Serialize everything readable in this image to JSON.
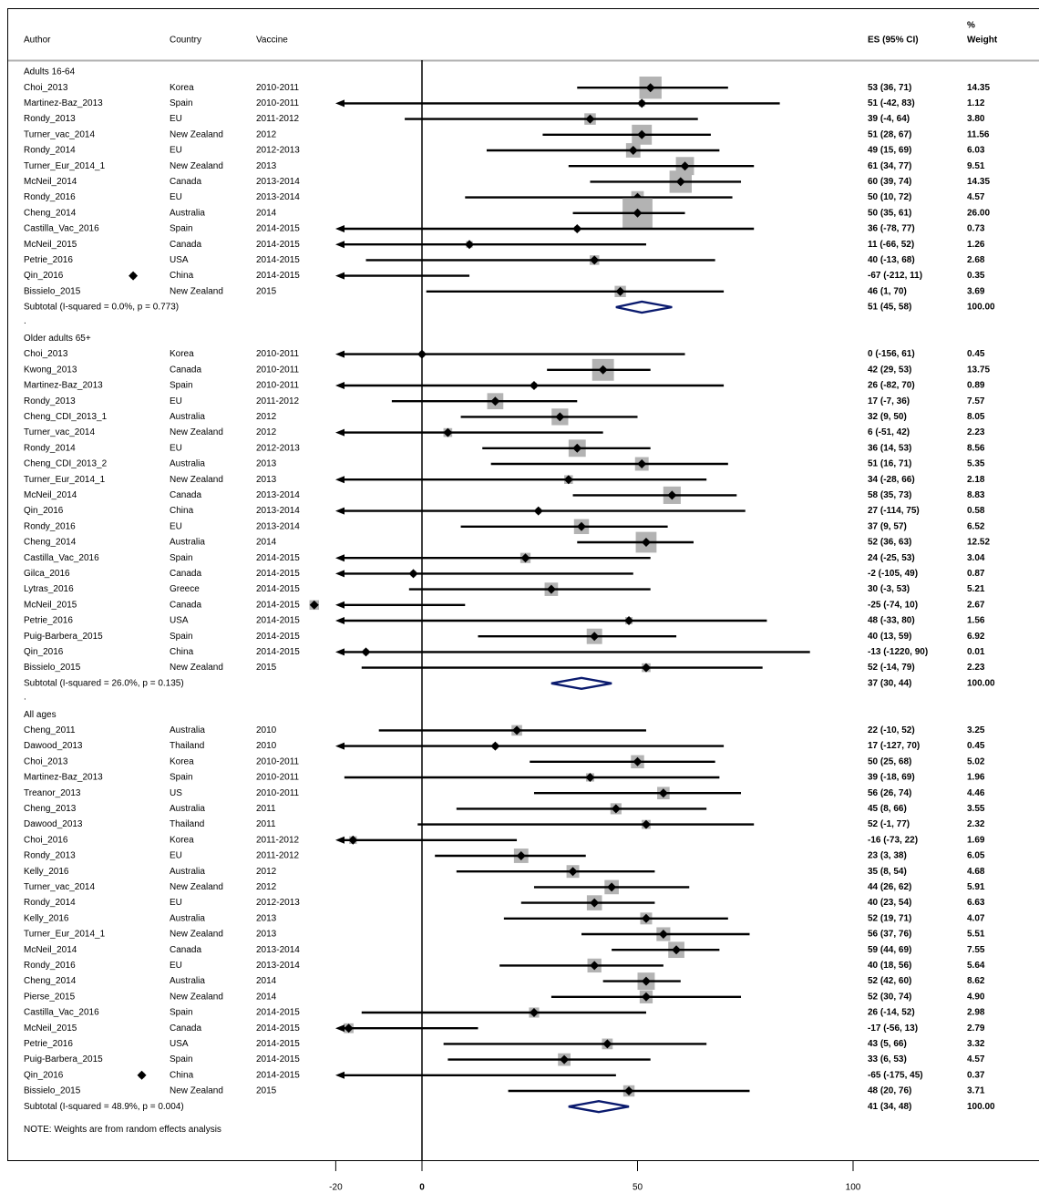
{
  "chart_data": {
    "type": "forest",
    "headers": {
      "author": "Author",
      "country": "Country",
      "vaccine": "Vaccine",
      "es": "ES (95% CI)",
      "weight_top": "%",
      "weight": "Weight"
    },
    "xaxis": {
      "ticks": [
        -20,
        0,
        50,
        100
      ],
      "range": [
        -20,
        100
      ],
      "null_line": 0
    },
    "note": "NOTE: Weights are from random effects analysis",
    "groups": [
      {
        "label": "Adults 16-64",
        "studies": [
          {
            "author": "Choi_2013",
            "country": "Korea",
            "vaccine": "2010-2011",
            "es": 53,
            "lo": 36,
            "hi": 71,
            "es_text": "53 (36, 71)",
            "weight": "14.35"
          },
          {
            "author": "Martinez-Baz_2013",
            "country": "Spain",
            "vaccine": "2010-2011",
            "es": 51,
            "lo": -42,
            "hi": 83,
            "es_text": "51 (-42, 83)",
            "weight": "1.12"
          },
          {
            "author": "Rondy_2013",
            "country": "EU",
            "vaccine": "2011-2012",
            "es": 39,
            "lo": -4,
            "hi": 64,
            "es_text": "39 (-4, 64)",
            "weight": "3.80"
          },
          {
            "author": "Turner_vac_2014",
            "country": "New Zealand",
            "vaccine": "2012",
            "es": 51,
            "lo": 28,
            "hi": 67,
            "es_text": "51 (28, 67)",
            "weight": "11.56"
          },
          {
            "author": "Rondy_2014",
            "country": "EU",
            "vaccine": "2012-2013",
            "es": 49,
            "lo": 15,
            "hi": 69,
            "es_text": "49 (15, 69)",
            "weight": "6.03"
          },
          {
            "author": "Turner_Eur_2014_1",
            "country": "New Zealand",
            "vaccine": "2013",
            "es": 61,
            "lo": 34,
            "hi": 77,
            "es_text": "61 (34, 77)",
            "weight": "9.51"
          },
          {
            "author": "McNeil_2014",
            "country": "Canada",
            "vaccine": "2013-2014",
            "es": 60,
            "lo": 39,
            "hi": 74,
            "es_text": "60 (39, 74)",
            "weight": "14.35"
          },
          {
            "author": "Rondy_2016",
            "country": "EU",
            "vaccine": "2013-2014",
            "es": 50,
            "lo": 10,
            "hi": 72,
            "es_text": "50 (10, 72)",
            "weight": "4.57"
          },
          {
            "author": "Cheng_2014",
            "country": "Australia",
            "vaccine": "2014",
            "es": 50,
            "lo": 35,
            "hi": 61,
            "es_text": "50 (35, 61)",
            "weight": "26.00"
          },
          {
            "author": "Castilla_Vac_2016",
            "country": "Spain",
            "vaccine": "2014-2015",
            "es": 36,
            "lo": -78,
            "hi": 77,
            "es_text": "36 (-78, 77)",
            "weight": "0.73"
          },
          {
            "author": "McNeil_2015",
            "country": "Canada",
            "vaccine": "2014-2015",
            "es": 11,
            "lo": -66,
            "hi": 52,
            "es_text": "11 (-66, 52)",
            "weight": "1.26"
          },
          {
            "author": "Petrie_2016",
            "country": "USA",
            "vaccine": "2014-2015",
            "es": 40,
            "lo": -13,
            "hi": 68,
            "es_text": "40 (-13, 68)",
            "weight": "2.68"
          },
          {
            "author": "Qin_2016",
            "country": "China",
            "vaccine": "2014-2015",
            "es": -67,
            "lo": -212,
            "hi": 11,
            "es_text": "-67 (-212, 11)",
            "weight": "0.35"
          },
          {
            "author": "Bissielo_2015",
            "country": "New Zealand",
            "vaccine": "2015",
            "es": 46,
            "lo": 1,
            "hi": 70,
            "es_text": "46 (1, 70)",
            "weight": "3.69"
          }
        ],
        "subtotal": {
          "label": "Subtotal  (I-squared = 0.0%, p = 0.773)",
          "es": 51,
          "lo": 45,
          "hi": 58,
          "es_text": "51 (45, 58)",
          "weight": "100.00"
        }
      },
      {
        "label": "Older adults 65+",
        "studies": [
          {
            "author": "Choi_2013",
            "country": "Korea",
            "vaccine": "2010-2011",
            "es": 0,
            "lo": -156,
            "hi": 61,
            "es_text": "0 (-156, 61)",
            "weight": "0.45"
          },
          {
            "author": "Kwong_2013",
            "country": "Canada",
            "vaccine": "2010-2011",
            "es": 42,
            "lo": 29,
            "hi": 53,
            "es_text": "42 (29, 53)",
            "weight": "13.75"
          },
          {
            "author": "Martinez-Baz_2013",
            "country": "Spain",
            "vaccine": "2010-2011",
            "es": 26,
            "lo": -82,
            "hi": 70,
            "es_text": "26 (-82, 70)",
            "weight": "0.89"
          },
          {
            "author": "Rondy_2013",
            "country": "EU",
            "vaccine": "2011-2012",
            "es": 17,
            "lo": -7,
            "hi": 36,
            "es_text": "17 (-7, 36)",
            "weight": "7.57"
          },
          {
            "author": "Cheng_CDI_2013_1",
            "country": "Australia",
            "vaccine": "2012",
            "es": 32,
            "lo": 9,
            "hi": 50,
            "es_text": "32 (9, 50)",
            "weight": "8.05"
          },
          {
            "author": "Turner_vac_2014",
            "country": "New Zealand",
            "vaccine": "2012",
            "es": 6,
            "lo": -51,
            "hi": 42,
            "es_text": "6 (-51, 42)",
            "weight": "2.23"
          },
          {
            "author": "Rondy_2014",
            "country": "EU",
            "vaccine": "2012-2013",
            "es": 36,
            "lo": 14,
            "hi": 53,
            "es_text": "36 (14, 53)",
            "weight": "8.56"
          },
          {
            "author": "Cheng_CDI_2013_2",
            "country": "Australia",
            "vaccine": "2013",
            "es": 51,
            "lo": 16,
            "hi": 71,
            "es_text": "51 (16, 71)",
            "weight": "5.35"
          },
          {
            "author": "Turner_Eur_2014_1",
            "country": "New Zealand",
            "vaccine": "2013",
            "es": 34,
            "lo": -28,
            "hi": 66,
            "es_text": "34 (-28, 66)",
            "weight": "2.18"
          },
          {
            "author": "McNeil_2014",
            "country": "Canada",
            "vaccine": "2013-2014",
            "es": 58,
            "lo": 35,
            "hi": 73,
            "es_text": "58 (35, 73)",
            "weight": "8.83"
          },
          {
            "author": "Qin_2016",
            "country": "China",
            "vaccine": "2013-2014",
            "es": 27,
            "lo": -114,
            "hi": 75,
            "es_text": "27 (-114, 75)",
            "weight": "0.58"
          },
          {
            "author": "Rondy_2016",
            "country": "EU",
            "vaccine": "2013-2014",
            "es": 37,
            "lo": 9,
            "hi": 57,
            "es_text": "37 (9, 57)",
            "weight": "6.52"
          },
          {
            "author": "Cheng_2014",
            "country": "Australia",
            "vaccine": "2014",
            "es": 52,
            "lo": 36,
            "hi": 63,
            "es_text": "52 (36, 63)",
            "weight": "12.52"
          },
          {
            "author": "Castilla_Vac_2016",
            "country": "Spain",
            "vaccine": "2014-2015",
            "es": 24,
            "lo": -25,
            "hi": 53,
            "es_text": "24 (-25, 53)",
            "weight": "3.04"
          },
          {
            "author": "Gilca_2016",
            "country": "Canada",
            "vaccine": "2014-2015",
            "es": -2,
            "lo": -105,
            "hi": 49,
            "es_text": "-2 (-105, 49)",
            "weight": "0.87"
          },
          {
            "author": "Lytras_2016",
            "country": "Greece",
            "vaccine": "2014-2015",
            "es": 30,
            "lo": -3,
            "hi": 53,
            "es_text": "30 (-3, 53)",
            "weight": "5.21"
          },
          {
            "author": "McNeil_2015",
            "country": "Canada",
            "vaccine": "2014-2015",
            "es": -25,
            "lo": -74,
            "hi": 10,
            "es_text": "-25 (-74, 10)",
            "weight": "2.67"
          },
          {
            "author": "Petrie_2016",
            "country": "USA",
            "vaccine": "2014-2015",
            "es": 48,
            "lo": -33,
            "hi": 80,
            "es_text": "48 (-33, 80)",
            "weight": "1.56"
          },
          {
            "author": "Puig-Barbera_2015",
            "country": "Spain",
            "vaccine": "2014-2015",
            "es": 40,
            "lo": 13,
            "hi": 59,
            "es_text": "40 (13, 59)",
            "weight": "6.92"
          },
          {
            "author": "Qin_2016",
            "country": "China",
            "vaccine": "2014-2015",
            "es": -13,
            "lo": -1220,
            "hi": 90,
            "es_text": "-13 (-1220, 90)",
            "weight": "0.01"
          },
          {
            "author": "Bissielo_2015",
            "country": "New Zealand",
            "vaccine": "2015",
            "es": 52,
            "lo": -14,
            "hi": 79,
            "es_text": "52 (-14, 79)",
            "weight": "2.23"
          }
        ],
        "subtotal": {
          "label": "Subtotal  (I-squared = 26.0%, p = 0.135)",
          "es": 37,
          "lo": 30,
          "hi": 44,
          "es_text": "37 (30, 44)",
          "weight": "100.00"
        }
      },
      {
        "label": "All ages",
        "studies": [
          {
            "author": "Cheng_2011",
            "country": "Australia",
            "vaccine": "2010",
            "es": 22,
            "lo": -10,
            "hi": 52,
            "es_text": "22 (-10, 52)",
            "weight": "3.25"
          },
          {
            "author": "Dawood_2013",
            "country": "Thailand",
            "vaccine": "2010",
            "es": 17,
            "lo": -127,
            "hi": 70,
            "es_text": "17 (-127, 70)",
            "weight": "0.45"
          },
          {
            "author": "Choi_2013",
            "country": "Korea",
            "vaccine": "2010-2011",
            "es": 50,
            "lo": 25,
            "hi": 68,
            "es_text": "50 (25, 68)",
            "weight": "5.02"
          },
          {
            "author": "Martinez-Baz_2013",
            "country": "Spain",
            "vaccine": "2010-2011",
            "es": 39,
            "lo": -18,
            "hi": 69,
            "es_text": "39 (-18, 69)",
            "weight": "1.96"
          },
          {
            "author": "Treanor_2013",
            "country": "US",
            "vaccine": "2010-2011",
            "es": 56,
            "lo": 26,
            "hi": 74,
            "es_text": "56 (26, 74)",
            "weight": "4.46"
          },
          {
            "author": "Cheng_2013",
            "country": "Australia",
            "vaccine": "2011",
            "es": 45,
            "lo": 8,
            "hi": 66,
            "es_text": "45 (8, 66)",
            "weight": "3.55"
          },
          {
            "author": "Dawood_2013",
            "country": "Thailand",
            "vaccine": "2011",
            "es": 52,
            "lo": -1,
            "hi": 77,
            "es_text": "52 (-1, 77)",
            "weight": "2.32"
          },
          {
            "author": "Choi_2016",
            "country": "Korea",
            "vaccine": "2011-2012",
            "es": -16,
            "lo": -73,
            "hi": 22,
            "es_text": "-16 (-73, 22)",
            "weight": "1.69"
          },
          {
            "author": "Rondy_2013",
            "country": "EU",
            "vaccine": "2011-2012",
            "es": 23,
            "lo": 3,
            "hi": 38,
            "es_text": "23 (3, 38)",
            "weight": "6.05"
          },
          {
            "author": "Kelly_2016",
            "country": "Australia",
            "vaccine": "2012",
            "es": 35,
            "lo": 8,
            "hi": 54,
            "es_text": "35 (8, 54)",
            "weight": "4.68"
          },
          {
            "author": "Turner_vac_2014",
            "country": "New Zealand",
            "vaccine": "2012",
            "es": 44,
            "lo": 26,
            "hi": 62,
            "es_text": "44 (26, 62)",
            "weight": "5.91"
          },
          {
            "author": "Rondy_2014",
            "country": "EU",
            "vaccine": "2012-2013",
            "es": 40,
            "lo": 23,
            "hi": 54,
            "es_text": "40 (23, 54)",
            "weight": "6.63"
          },
          {
            "author": "Kelly_2016",
            "country": "Australia",
            "vaccine": "2013",
            "es": 52,
            "lo": 19,
            "hi": 71,
            "es_text": "52 (19, 71)",
            "weight": "4.07"
          },
          {
            "author": "Turner_Eur_2014_1",
            "country": "New Zealand",
            "vaccine": "2013",
            "es": 56,
            "lo": 37,
            "hi": 76,
            "es_text": "56 (37, 76)",
            "weight": "5.51"
          },
          {
            "author": "McNeil_2014",
            "country": "Canada",
            "vaccine": "2013-2014",
            "es": 59,
            "lo": 44,
            "hi": 69,
            "es_text": "59 (44, 69)",
            "weight": "7.55"
          },
          {
            "author": "Rondy_2016",
            "country": "EU",
            "vaccine": "2013-2014",
            "es": 40,
            "lo": 18,
            "hi": 56,
            "es_text": "40 (18, 56)",
            "weight": "5.64"
          },
          {
            "author": "Cheng_2014",
            "country": "Australia",
            "vaccine": "2014",
            "es": 52,
            "lo": 42,
            "hi": 60,
            "es_text": "52 (42, 60)",
            "weight": "8.62"
          },
          {
            "author": "Pierse_2015",
            "country": "New Zealand",
            "vaccine": "2014",
            "es": 52,
            "lo": 30,
            "hi": 74,
            "es_text": "52 (30, 74)",
            "weight": "4.90"
          },
          {
            "author": "Castilla_Vac_2016",
            "country": "Spain",
            "vaccine": "2014-2015",
            "es": 26,
            "lo": -14,
            "hi": 52,
            "es_text": "26 (-14, 52)",
            "weight": "2.98"
          },
          {
            "author": "McNeil_2015",
            "country": "Canada",
            "vaccine": "2014-2015",
            "es": -17,
            "lo": -56,
            "hi": 13,
            "es_text": "-17 (-56, 13)",
            "weight": "2.79"
          },
          {
            "author": "Petrie_2016",
            "country": "USA",
            "vaccine": "2014-2015",
            "es": 43,
            "lo": 5,
            "hi": 66,
            "es_text": "43 (5, 66)",
            "weight": "3.32"
          },
          {
            "author": "Puig-Barbera_2015",
            "country": "Spain",
            "vaccine": "2014-2015",
            "es": 33,
            "lo": 6,
            "hi": 53,
            "es_text": "33 (6, 53)",
            "weight": "4.57"
          },
          {
            "author": "Qin_2016",
            "country": "China",
            "vaccine": "2014-2015",
            "es": -65,
            "lo": -175,
            "hi": 45,
            "es_text": "-65 (-175, 45)",
            "weight": "0.37"
          },
          {
            "author": "Bissielo_2015",
            "country": "New Zealand",
            "vaccine": "2015",
            "es": 48,
            "lo": 20,
            "hi": 76,
            "es_text": "48 (20, 76)",
            "weight": "3.71"
          }
        ],
        "subtotal": {
          "label": "Subtotal  (I-squared = 48.9%, p = 0.004)",
          "es": 41,
          "lo": 34,
          "hi": 48,
          "es_text": "41 (34, 48)",
          "weight": "100.00"
        }
      }
    ],
    "colors": {
      "weight_box": "#b3b3b3",
      "diamond_stroke": "#0a1a6e",
      "line": "#000000",
      "header_rule": "#b0b0b0"
    }
  }
}
